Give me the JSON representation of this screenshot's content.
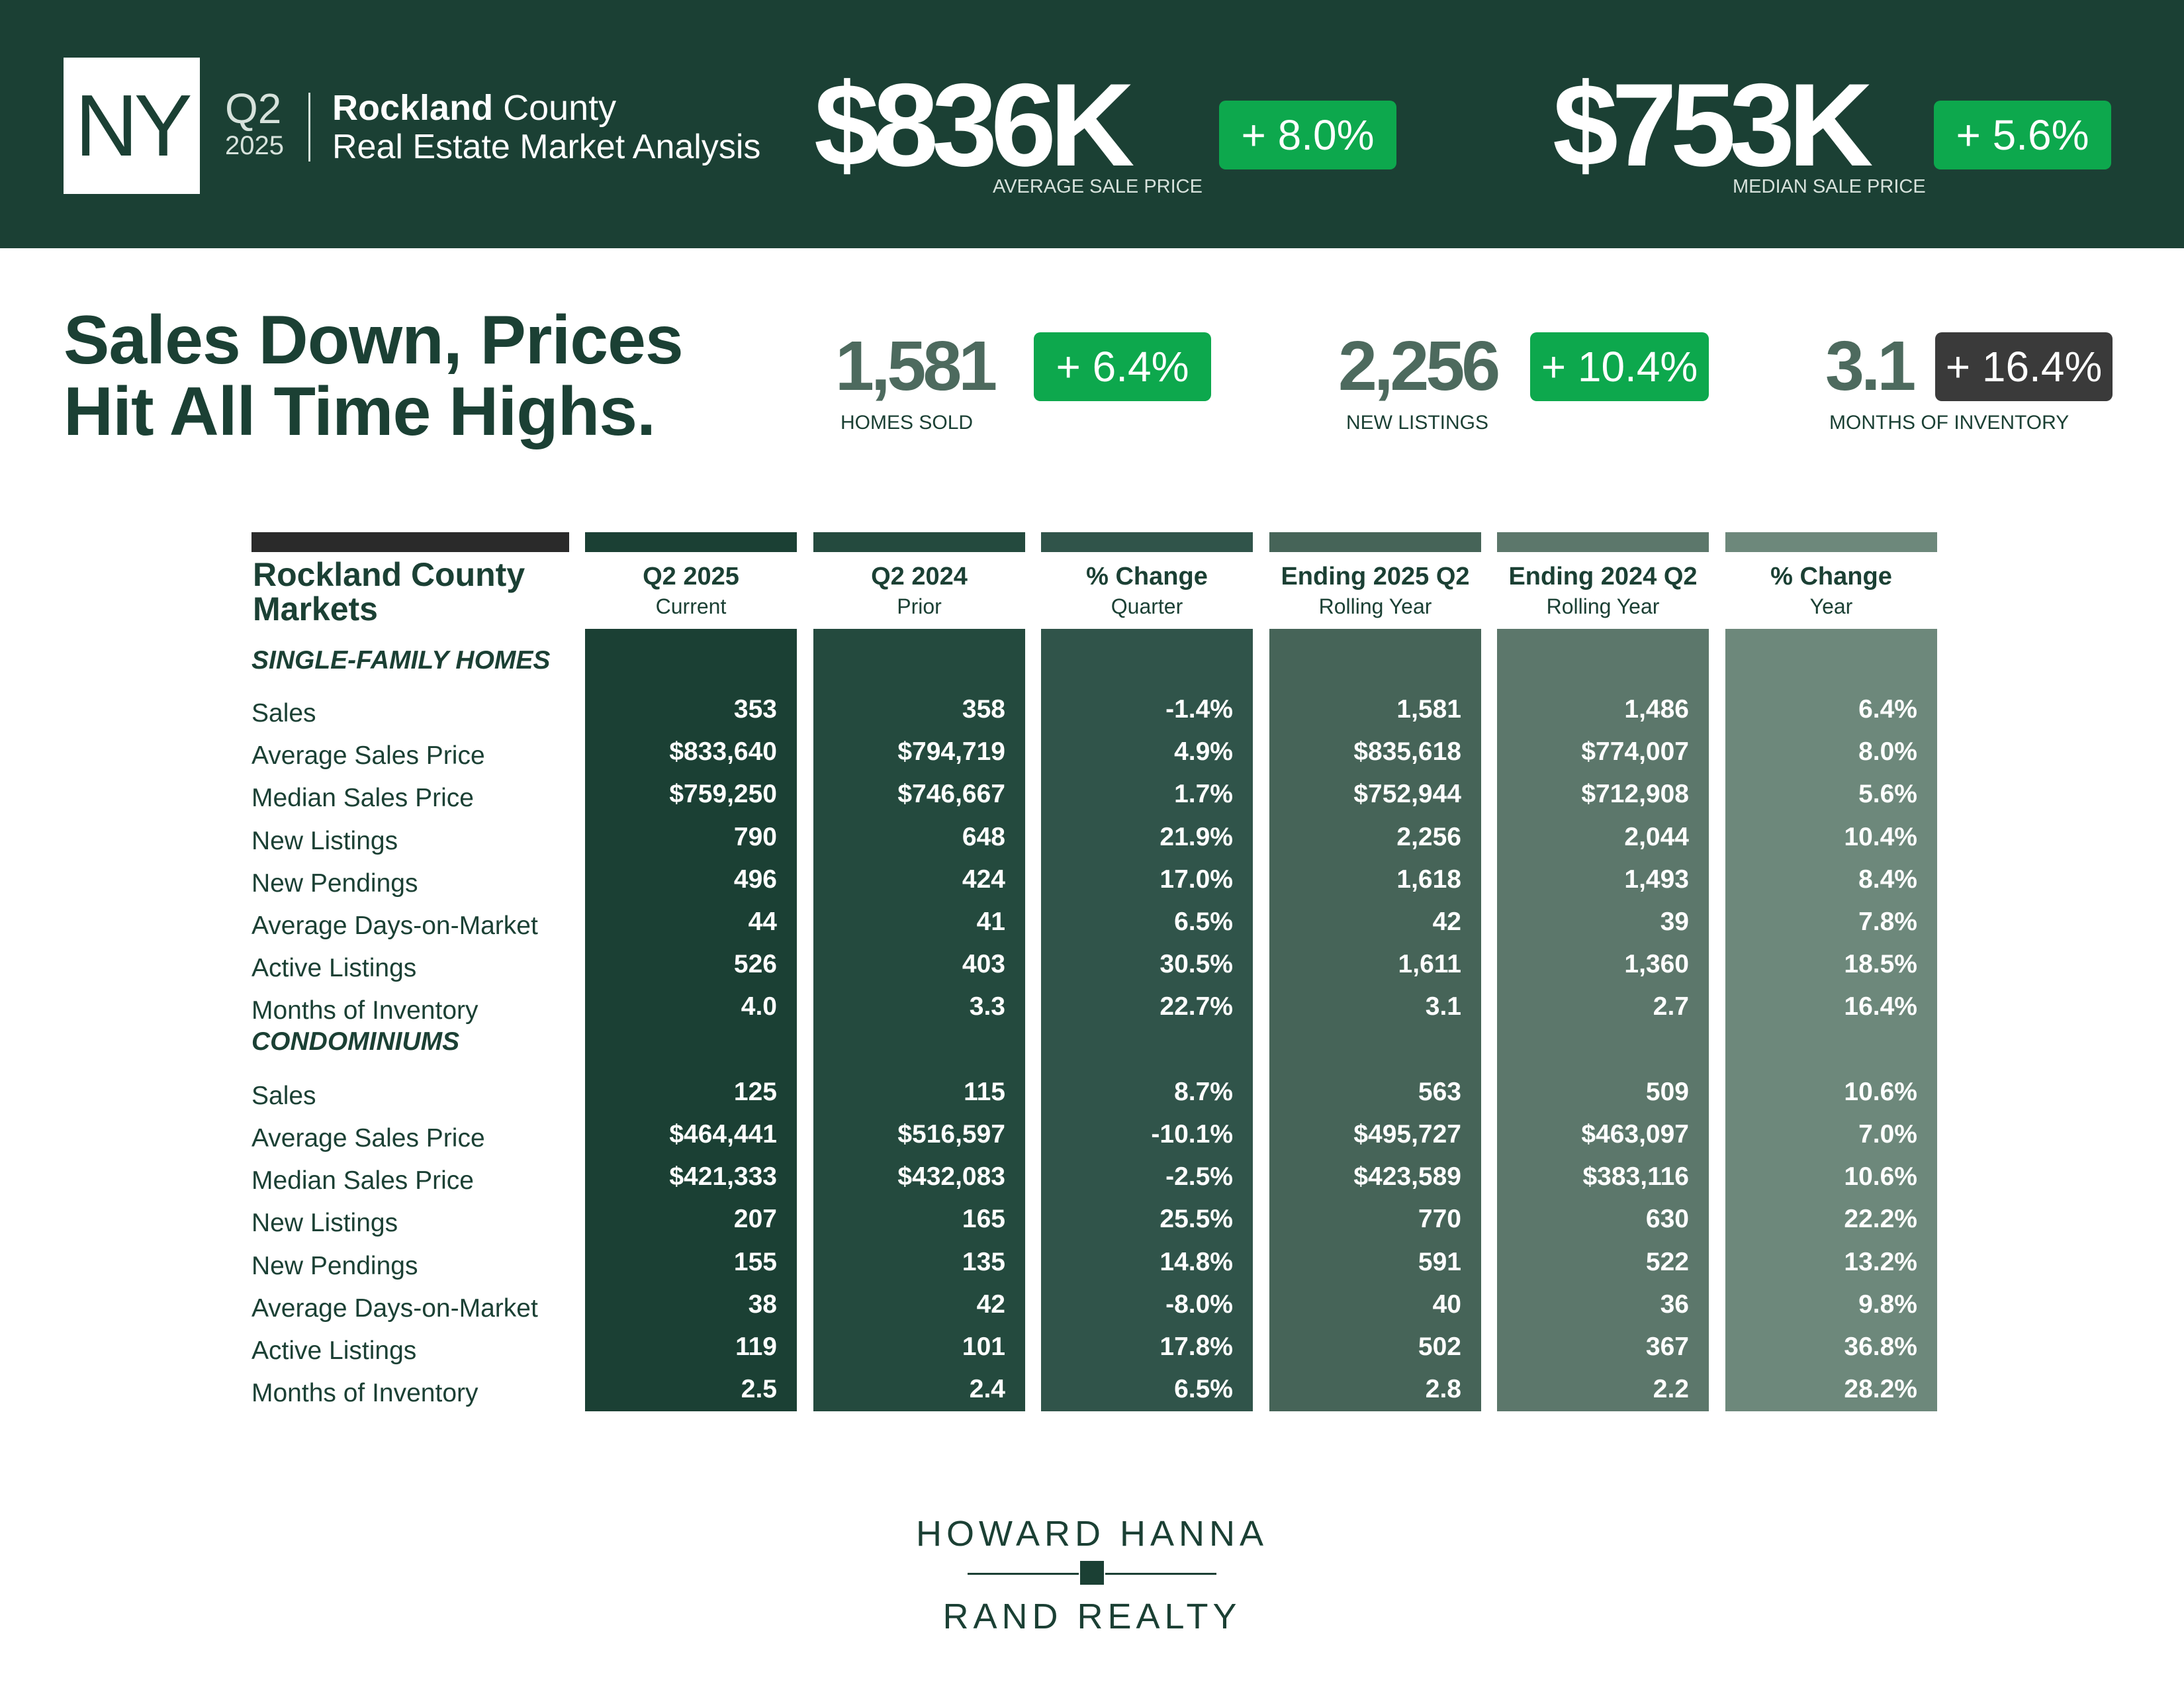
{
  "header": {
    "state": "NY",
    "quarter": "Q2",
    "year": "2025",
    "county": "Rockland",
    "county_suffix": "County",
    "report_title": "Real Estate Market Analysis",
    "avg_price": {
      "value": "$836K",
      "change": "+ 8.0%",
      "label": "AVERAGE SALE PRICE"
    },
    "median_price": {
      "value": "$753K",
      "change": "+ 5.6%",
      "label": "MEDIAN SALE PRICE"
    }
  },
  "headline": {
    "line1": "Sales Down, Prices",
    "line2": "Hit All Time Highs."
  },
  "stats": [
    {
      "value": "1,581",
      "change": "+ 6.4%",
      "label": "HOMES SOLD"
    },
    {
      "value": "2,256",
      "change": "+ 10.4%",
      "label": "NEW LISTINGS"
    },
    {
      "value": "3.1",
      "change": "+ 16.4%",
      "label": "MONTHS OF INVENTORY"
    }
  ],
  "colors": {
    "brand_dark": "#1b4034",
    "positive_badge": "#0da84d",
    "neutral_badge": "#3a3a3a",
    "columns": [
      "#1b4034",
      "#244a3e",
      "#30544a",
      "#466458",
      "#5c776b",
      "#6d887b"
    ]
  },
  "table": {
    "title_line1": "Rockland County",
    "title_line2": "Markets",
    "columns": [
      {
        "h1": "Q2 2025",
        "h2": "Current"
      },
      {
        "h1": "Q2 2024",
        "h2": "Prior"
      },
      {
        "h1": "% Change",
        "h2": "Quarter"
      },
      {
        "h1": "Ending 2025 Q2",
        "h2": "Rolling Year"
      },
      {
        "h1": "Ending 2024 Q2",
        "h2": "Rolling Year"
      },
      {
        "h1": "% Change",
        "h2": "Year"
      }
    ],
    "sections": [
      {
        "name": "SINGLE-FAMILY HOMES",
        "rows": [
          {
            "label": "Sales",
            "values": [
              "353",
              "358",
              "-1.4%",
              "1,581",
              "1,486",
              "6.4%"
            ]
          },
          {
            "label": "Average Sales Price",
            "values": [
              "$833,640",
              "$794,719",
              "4.9%",
              "$835,618",
              "$774,007",
              "8.0%"
            ]
          },
          {
            "label": "Median Sales Price",
            "values": [
              "$759,250",
              "$746,667",
              "1.7%",
              "$752,944",
              "$712,908",
              "5.6%"
            ]
          },
          {
            "label": "New Listings",
            "values": [
              "790",
              "648",
              "21.9%",
              "2,256",
              "2,044",
              "10.4%"
            ]
          },
          {
            "label": "New Pendings",
            "values": [
              "496",
              "424",
              "17.0%",
              "1,618",
              "1,493",
              "8.4%"
            ]
          },
          {
            "label": "Average Days-on-Market",
            "values": [
              "44",
              "41",
              "6.5%",
              "42",
              "39",
              "7.8%"
            ]
          },
          {
            "label": "Active Listings",
            "values": [
              "526",
              "403",
              "30.5%",
              "1,611",
              "1,360",
              "18.5%"
            ]
          },
          {
            "label": "Months of Inventory",
            "values": [
              "4.0",
              "3.3",
              "22.7%",
              "3.1",
              "2.7",
              "16.4%"
            ]
          }
        ]
      },
      {
        "name": "CONDOMINIUMS",
        "rows": [
          {
            "label": "Sales",
            "values": [
              "125",
              "115",
              "8.7%",
              "563",
              "509",
              "10.6%"
            ]
          },
          {
            "label": "Average Sales Price",
            "values": [
              "$464,441",
              "$516,597",
              "-10.1%",
              "$495,727",
              "$463,097",
              "7.0%"
            ]
          },
          {
            "label": "Median Sales Price",
            "values": [
              "$421,333",
              "$432,083",
              "-2.5%",
              "$423,589",
              "$383,116",
              "10.6%"
            ]
          },
          {
            "label": "New Listings",
            "values": [
              "207",
              "165",
              "25.5%",
              "770",
              "630",
              "22.2%"
            ]
          },
          {
            "label": "New Pendings",
            "values": [
              "155",
              "135",
              "14.8%",
              "591",
              "522",
              "13.2%"
            ]
          },
          {
            "label": "Average Days-on-Market",
            "values": [
              "38",
              "42",
              "-8.0%",
              "40",
              "36",
              "9.8%"
            ]
          },
          {
            "label": "Active Listings",
            "values": [
              "119",
              "101",
              "17.8%",
              "502",
              "367",
              "36.8%"
            ]
          },
          {
            "label": "Months of Inventory",
            "values": [
              "2.5",
              "2.4",
              "6.5%",
              "2.8",
              "2.2",
              "28.2%"
            ]
          }
        ]
      }
    ]
  },
  "logo": {
    "line1": "HOWARD HANNA",
    "line2": "RAND REALTY"
  }
}
